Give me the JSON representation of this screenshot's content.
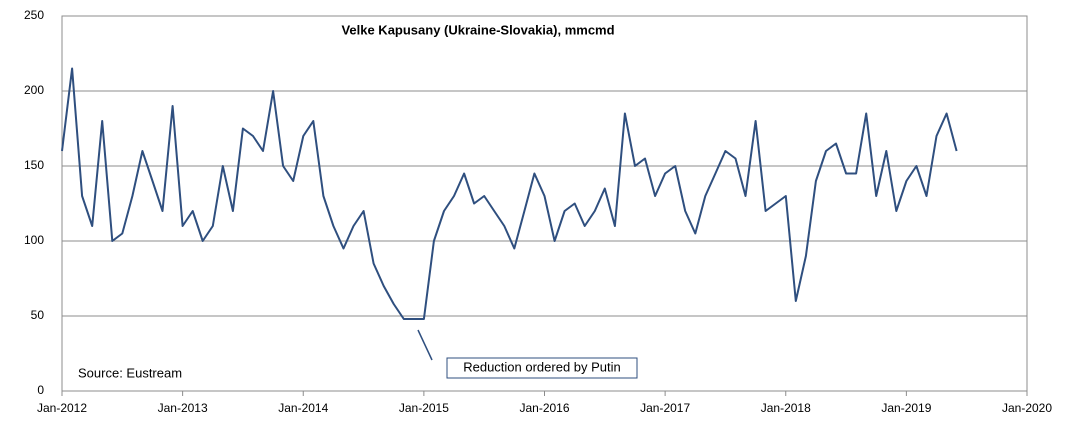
{
  "chart_data": {
    "type": "line",
    "title": "Velke Kapusany (Ukraine-Slovakia), mmcmd",
    "annotations": [
      "Reduction ordered by Putin",
      "Source: Eustream"
    ],
    "color": "#2f4f7f",
    "x": [
      "2012-01",
      "2012-02",
      "2012-03",
      "2012-04",
      "2012-05",
      "2012-06",
      "2012-07",
      "2012-08",
      "2012-09",
      "2012-10",
      "2012-11",
      "2012-12",
      "2013-01",
      "2013-02",
      "2013-03",
      "2013-04",
      "2013-05",
      "2013-06",
      "2013-07",
      "2013-08",
      "2013-09",
      "2013-10",
      "2013-11",
      "2013-12",
      "2014-01",
      "2014-02",
      "2014-03",
      "2014-04",
      "2014-05",
      "2014-06",
      "2014-07",
      "2014-08",
      "2014-09",
      "2014-10",
      "2014-11",
      "2014-12",
      "2015-01",
      "2015-02",
      "2015-03",
      "2015-04",
      "2015-05",
      "2015-06",
      "2015-07",
      "2015-08",
      "2015-09",
      "2015-10",
      "2015-11",
      "2015-12",
      "2016-01",
      "2016-02",
      "2016-03",
      "2016-04",
      "2016-05",
      "2016-06",
      "2016-07",
      "2016-08",
      "2016-09",
      "2016-10",
      "2016-11",
      "2016-12",
      "2017-01",
      "2017-02",
      "2017-03",
      "2017-04",
      "2017-05",
      "2017-06",
      "2017-07",
      "2017-08",
      "2017-09",
      "2017-10",
      "2017-11",
      "2017-12",
      "2018-01",
      "2018-02",
      "2018-03",
      "2018-04",
      "2018-05",
      "2018-06",
      "2018-07",
      "2018-08",
      "2018-09",
      "2018-10",
      "2018-11",
      "2018-12",
      "2019-01",
      "2019-02",
      "2019-03",
      "2019-04",
      "2019-05",
      "2019-06"
    ],
    "values": [
      160,
      215,
      130,
      110,
      180,
      100,
      105,
      130,
      160,
      140,
      120,
      190,
      110,
      120,
      100,
      110,
      150,
      120,
      175,
      170,
      160,
      200,
      150,
      140,
      170,
      180,
      130,
      110,
      95,
      110,
      120,
      85,
      70,
      58,
      48,
      48,
      48,
      100,
      120,
      130,
      145,
      125,
      130,
      120,
      110,
      95,
      120,
      145,
      130,
      100,
      120,
      125,
      110,
      120,
      135,
      110,
      185,
      150,
      155,
      130,
      145,
      150,
      120,
      105,
      130,
      145,
      160,
      155,
      130,
      180,
      120,
      125,
      130,
      60,
      90,
      140,
      160,
      165,
      145,
      145,
      185,
      130,
      160,
      120,
      140,
      150,
      130,
      170,
      185,
      160
    ],
    "xlim": [
      "2012-01",
      "2020-01"
    ],
    "xticks": [
      {
        "value": "2012-01",
        "label": "Jan-2012"
      },
      {
        "value": "2013-01",
        "label": "Jan-2013"
      },
      {
        "value": "2014-01",
        "label": "Jan-2014"
      },
      {
        "value": "2015-01",
        "label": "Jan-2015"
      },
      {
        "value": "2016-01",
        "label": "Jan-2016"
      },
      {
        "value": "2017-01",
        "label": "Jan-2017"
      },
      {
        "value": "2018-01",
        "label": "Jan-2018"
      },
      {
        "value": "2019-01",
        "label": "Jan-2019"
      },
      {
        "value": "2020-01",
        "label": "Jan-2020"
      }
    ],
    "ylim": [
      0,
      250
    ],
    "yticks": [
      0,
      50,
      100,
      150,
      200,
      250
    ],
    "grid": true
  }
}
